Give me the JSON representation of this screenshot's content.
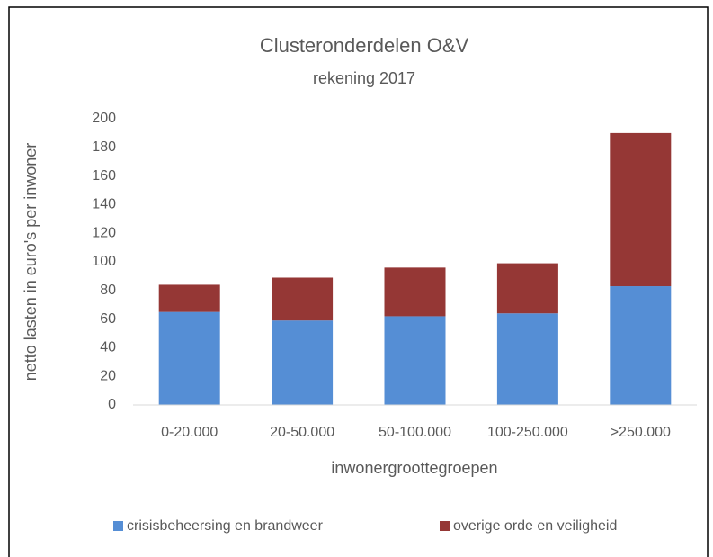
{
  "chart_data": {
    "type": "stacked_bar",
    "title": "Clusteronderdelen O&V",
    "subtitle": "rekening 2017",
    "x_label": "inwonergroottegroepen",
    "y_label": "netto lasten in euro's per inwoner",
    "categories": [
      "0-20.000",
      "20-50.000",
      "50-100.000",
      "100-250.000",
      ">250.000"
    ],
    "series": [
      {
        "name": "crisisbeheersing en brandweer",
        "color": "#558ed5",
        "values": [
          65,
          59,
          62,
          64,
          83
        ]
      },
      {
        "name": "overige orde en veiligheid",
        "color": "#953735",
        "values": [
          19,
          30,
          34,
          35,
          107
        ]
      }
    ],
    "ylim": [
      0,
      200
    ],
    "yticks": [
      0,
      20,
      40,
      60,
      80,
      100,
      120,
      140,
      160,
      180,
      200
    ],
    "grid": false,
    "legend": "bottom"
  }
}
